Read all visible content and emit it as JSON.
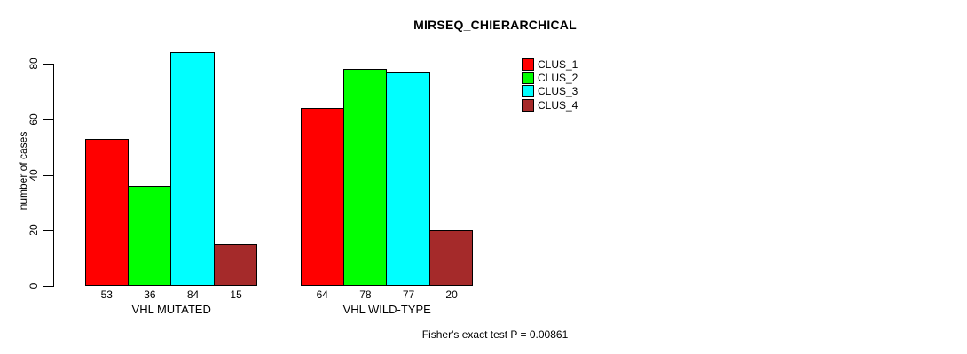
{
  "chart_data": {
    "type": "bar",
    "title": "MIRSEQ_CHIERARCHICAL",
    "xlabel": "",
    "ylabel": "number of cases",
    "ylim": [
      0,
      80
    ],
    "yticks": [
      0,
      20,
      40,
      60,
      80
    ],
    "grid": false,
    "legend_position": "top-right",
    "categories": [
      "VHL MUTATED",
      "VHL WILD-TYPE"
    ],
    "series": [
      {
        "name": "CLUS_1",
        "color": "#FF0000",
        "values": [
          53,
          64
        ]
      },
      {
        "name": "CLUS_2",
        "color": "#00FF00",
        "values": [
          36,
          78
        ]
      },
      {
        "name": "CLUS_3",
        "color": "#00FFFF",
        "values": [
          84,
          77
        ]
      },
      {
        "name": "CLUS_4",
        "color": "#A52A2A",
        "values": [
          15,
          20
        ]
      }
    ],
    "groups": [
      {
        "label": "VHL MUTATED",
        "values": [
          53,
          36,
          84,
          15
        ]
      },
      {
        "label": "VHL WILD-TYPE",
        "values": [
          64,
          78,
          77,
          20
        ]
      }
    ],
    "bar_value_labels_shown": true,
    "annotation": "Fisher's exact test P = 0.00861"
  }
}
